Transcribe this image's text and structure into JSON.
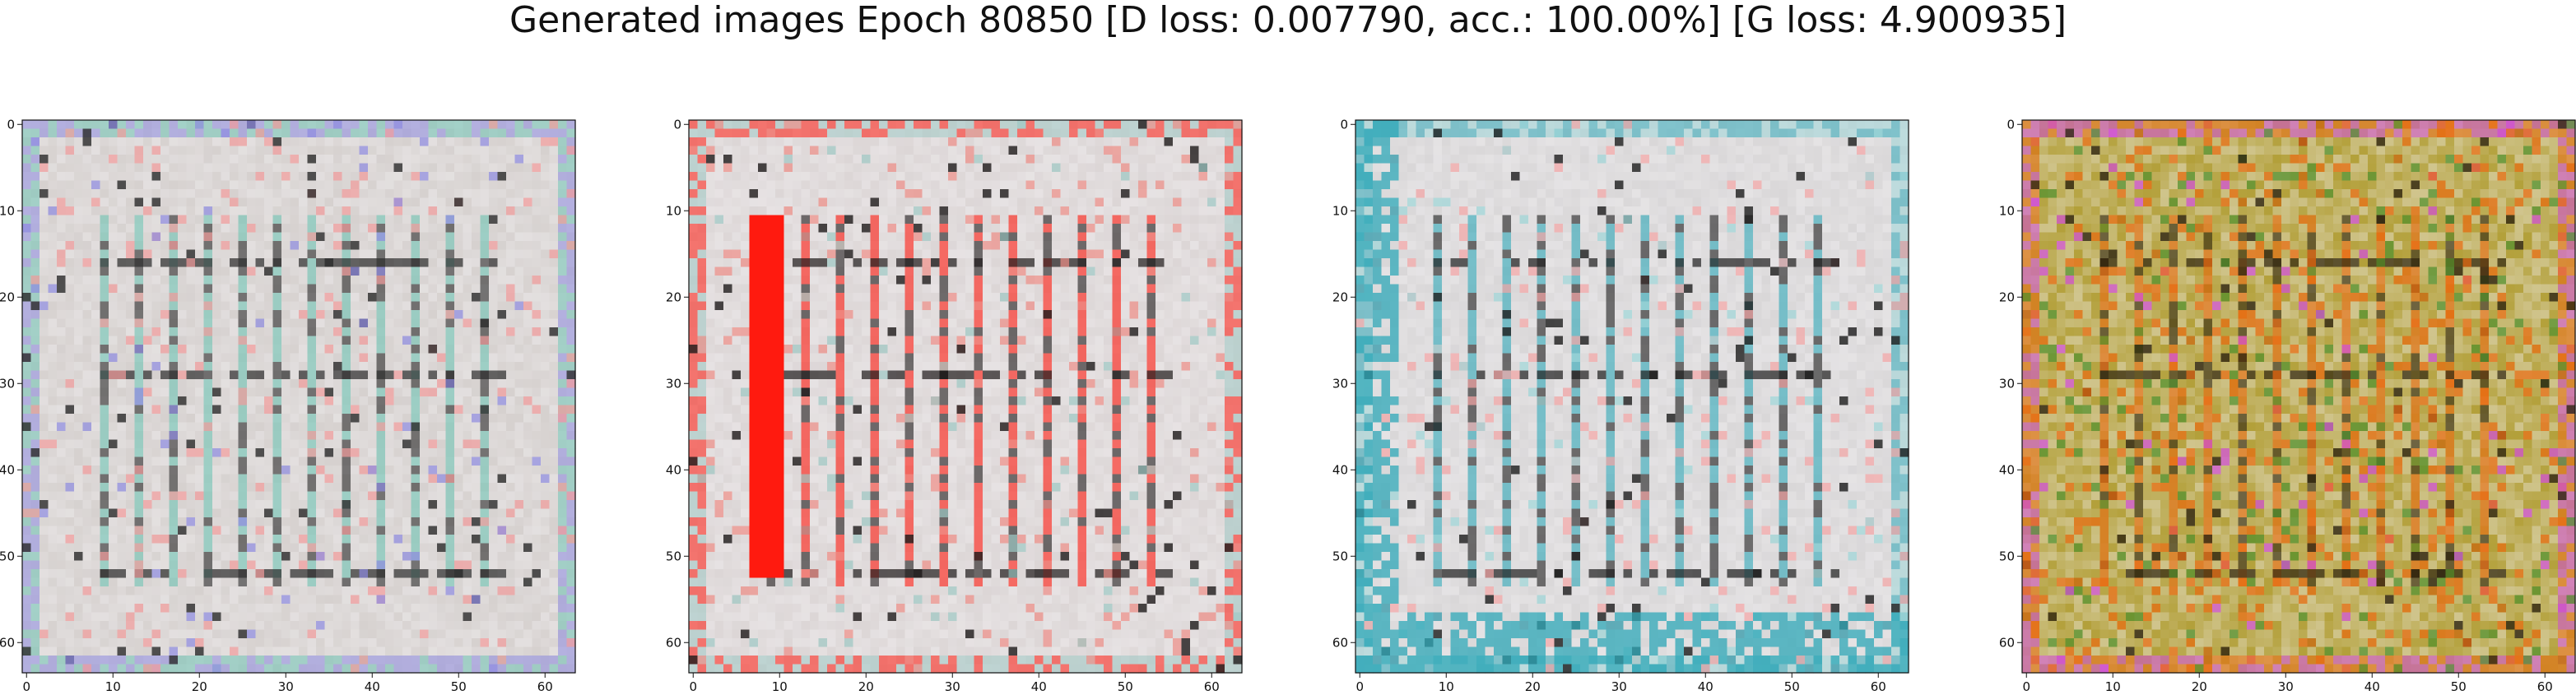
{
  "figure": {
    "title": "Generated images Epoch 80850 [D loss: 0.007790, acc.: 100.00%] [G loss: 4.900935]"
  },
  "panels": [
    {
      "x_ticks": [
        "0",
        "10",
        "20",
        "30",
        "40",
        "50",
        "60"
      ],
      "y_ticks": [
        "0",
        "10",
        "20",
        "30",
        "40",
        "50",
        "60"
      ],
      "palette": {
        "base": "#d6d1cf",
        "accent_a": "#6fc4b4",
        "accent_b": "#f29b9b",
        "dark": "#2a2a2a",
        "accent_c": "#8d8ae0"
      }
    },
    {
      "x_ticks": [
        "0",
        "10",
        "20",
        "30",
        "40",
        "50",
        "60"
      ],
      "y_ticks": [
        "0",
        "10",
        "20",
        "30",
        "40",
        "50",
        "60"
      ],
      "palette": {
        "base": "#dcd6d6",
        "accent_a": "#ff1a0f",
        "accent_b": "#ee8d86",
        "dark": "#1e1a1a",
        "accent_c": "#9ec8c4"
      }
    },
    {
      "x_ticks": [
        "0",
        "10",
        "20",
        "30",
        "40",
        "50",
        "60"
      ],
      "y_ticks": [
        "0",
        "10",
        "20",
        "30",
        "40",
        "50",
        "60"
      ],
      "palette": {
        "base": "#d9d7d8",
        "accent_a": "#2fa8b8",
        "accent_b": "#f5a5a5",
        "dark": "#1c1c1c",
        "accent_c": "#9ed6d8"
      }
    },
    {
      "x_ticks": [
        "0",
        "10",
        "20",
        "30",
        "40",
        "50",
        "60"
      ],
      "y_ticks": [
        "0",
        "10",
        "20",
        "30",
        "40",
        "50",
        "60"
      ],
      "palette": {
        "base": "#b3a03a",
        "accent_a": "#ea6a10",
        "accent_b": "#4d8f2c",
        "dark": "#2e2410",
        "accent_c": "#d24cdc"
      }
    }
  ]
}
